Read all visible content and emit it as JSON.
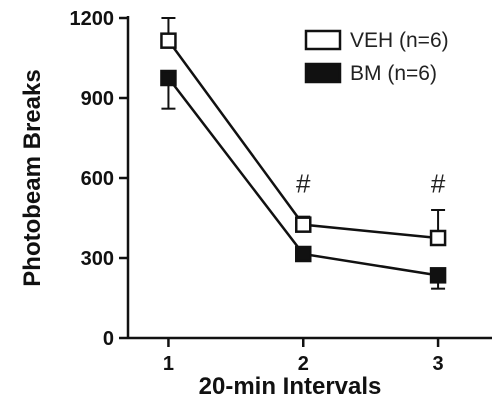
{
  "chart_data": {
    "type": "line",
    "xlabel": "20-min Intervals",
    "ylabel": "Photobeam Breaks",
    "x": [
      1,
      2,
      3
    ],
    "xlim": [
      0.7,
      3.4
    ],
    "ylim": [
      0,
      1200
    ],
    "yticks": [
      0,
      300,
      600,
      900,
      1200
    ],
    "xticks": [
      1,
      2,
      3
    ],
    "grid": false,
    "legend_position": "top-right",
    "series": [
      {
        "name": "VEH (n=6)",
        "marker": "open-square",
        "values": [
          1115,
          425,
          375
        ],
        "error": [
          85,
          30,
          105
        ]
      },
      {
        "name": "BM (n=6)",
        "marker": "filled-square",
        "values": [
          975,
          315,
          235
        ],
        "error": [
          115,
          20,
          50
        ]
      }
    ],
    "annotations": [
      {
        "x": 2,
        "text": "#"
      },
      {
        "x": 3,
        "text": "#"
      }
    ]
  }
}
